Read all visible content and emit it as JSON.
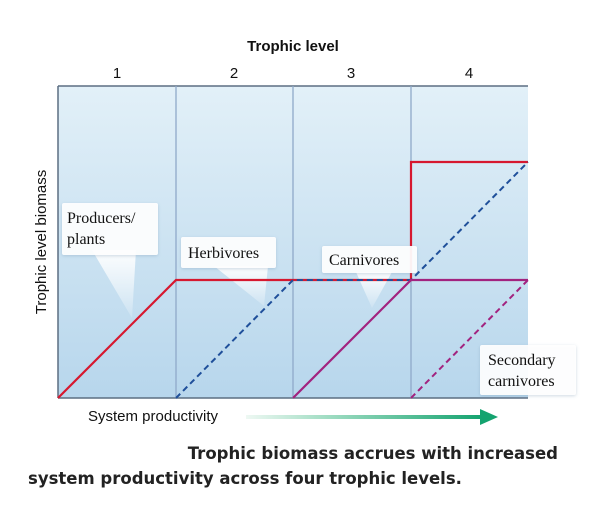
{
  "header": {
    "title": "Trophic level",
    "levels": [
      "1",
      "2",
      "3",
      "4"
    ]
  },
  "y_axis_label": "Trophic level biomass",
  "x_axis_label": "System productivity",
  "callouts": {
    "producers": [
      "Producers/",
      "plants"
    ],
    "herbivores": "Herbivores",
    "carnivores": "Carnivores",
    "secondary_carnivores": [
      "Secondary",
      "carnivores"
    ]
  },
  "caption": {
    "line1": "Trophic biomass accrues with increased",
    "line2": "system productivity across four trophic levels."
  },
  "colors": {
    "panel_top": "#e2f0f8",
    "panel_bottom": "#b7d6ec",
    "divider": "#8fa9c9",
    "producers": "#d6182f",
    "herbivores": "#1f4f9a",
    "carnivores": "#a2237f",
    "arrow_start": "#e8f6ef",
    "arrow_end": "#14a36f"
  }
}
